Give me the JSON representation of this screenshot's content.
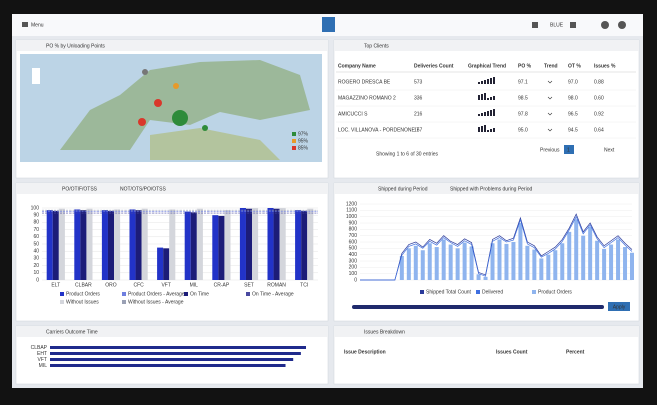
{
  "header": {
    "menu": "Menu",
    "user": "BLUE"
  },
  "map_panel": {
    "title": "PO % by Unloading Points",
    "legend": [
      "97%",
      "95%",
      "85%"
    ]
  },
  "clients": {
    "title": "Top Clients",
    "columns": [
      "Company Name",
      "Deliveries Count",
      "Graphical Trend",
      "PO %",
      "Trend",
      "OT %",
      "Issues %"
    ],
    "rows": [
      {
        "name": "ROGERO DRESCA BE",
        "count": "573",
        "po": "97.1",
        "ot": "97.0",
        "issues": "0.88"
      },
      {
        "name": "MAGAZZINO ROMANO 2",
        "count": "336",
        "po": "98.5",
        "ot": "98.0",
        "issues": "0.60"
      },
      {
        "name": "AMICUCCI S",
        "count": "216",
        "po": "97.8",
        "ot": "96.5",
        "issues": "0.92"
      },
      {
        "name": "LOC. VILLANOVA - PORDENONE 7",
        "count": "157",
        "po": "95.0",
        "ot": "94.5",
        "issues": "0.64"
      }
    ],
    "footer": "Showing 1 to 6 of 30 entries",
    "prev": "Previous",
    "page": "1",
    "next": "Next"
  },
  "carriers_panel": {
    "title": "Carriers Outcome Time"
  },
  "issues_panel": {
    "title": "Issues Breakdown",
    "columns": [
      "Issue Description",
      "Issues Count",
      "Percent"
    ]
  },
  "chart_data": [
    {
      "type": "bar",
      "tabs": [
        "PO/OTIF/OTSS",
        "NOT/OTS/PO/OTSS"
      ],
      "categories": [
        "ELT",
        "CLBAR",
        "ORO",
        "CFC",
        "VFT",
        "MIL",
        "CR-AP",
        "SET",
        "ROMAN",
        "TCI"
      ],
      "series": [
        {
          "name": "Product Orders",
          "color": "#2233c8",
          "values": [
            97,
            98,
            97,
            98,
            45,
            95,
            90,
            100,
            100,
            97
          ]
        },
        {
          "name": "Product Orders - Average",
          "color": "#6f7fe0",
          "values": [
            95,
            95,
            95,
            95,
            95,
            95,
            95,
            95,
            95,
            95
          ]
        },
        {
          "name": "On Time",
          "color": "#1c1c78",
          "values": [
            96,
            97,
            96,
            97,
            44,
            94,
            89,
            99,
            99,
            96
          ]
        },
        {
          "name": "On Time - Average",
          "color": "#4a4aa0",
          "values": [
            93,
            93,
            93,
            93,
            93,
            93,
            93,
            93,
            93,
            93
          ]
        },
        {
          "name": "Without Issues",
          "color": "#d4d6dc",
          "values": [
            99,
            99,
            98,
            99,
            98,
            99,
            97,
            100,
            100,
            99
          ]
        },
        {
          "name": "Without Issues - Average",
          "color": "#9aa0b4",
          "values": [
            97,
            97,
            97,
            97,
            97,
            97,
            97,
            97,
            97,
            97
          ]
        }
      ],
      "ylim": [
        0,
        100
      ],
      "yticks": [
        0,
        10,
        20,
        30,
        40,
        50,
        60,
        70,
        80,
        90,
        100
      ],
      "grid": true
    },
    {
      "type": "area",
      "tabs": [
        "Shipped during Period",
        "Shipped with Problems during Period"
      ],
      "series": [
        {
          "name": "Shipped Total Count",
          "color": "#2a3a9a",
          "values": [
            0,
            0,
            0,
            0,
            0,
            0,
            420,
            560,
            600,
            520,
            640,
            580,
            700,
            610,
            560,
            650,
            590,
            120,
            80,
            640,
            700,
            620,
            660,
            980,
            600,
            540,
            380,
            450,
            520,
            640,
            820,
            1040,
            760,
            900,
            680,
            540,
            620,
            700,
            580,
            480
          ]
        },
        {
          "name": "Delivered",
          "color": "#3f6fe0",
          "values": [
            0,
            0,
            0,
            0,
            0,
            0,
            390,
            530,
            570,
            500,
            610,
            550,
            670,
            590,
            530,
            620,
            560,
            100,
            60,
            610,
            670,
            600,
            630,
            950,
            570,
            510,
            360,
            420,
            490,
            610,
            790,
            1000,
            730,
            870,
            650,
            510,
            590,
            670,
            550,
            450
          ]
        },
        {
          "name": "Product Orders",
          "color": "#8fb4ee",
          "values": [
            0,
            0,
            0,
            0,
            0,
            0,
            380,
            500,
            540,
            470,
            580,
            520,
            640,
            560,
            500,
            590,
            530,
            90,
            50,
            580,
            640,
            570,
            600,
            900,
            540,
            480,
            340,
            400,
            470,
            580,
            760,
            960,
            700,
            840,
            620,
            490,
            560,
            640,
            520,
            430
          ]
        }
      ],
      "ylim": [
        0,
        1200
      ],
      "yticks": [
        0,
        100,
        200,
        300,
        400,
        500,
        600,
        700,
        800,
        900,
        1000,
        1100,
        1200
      ],
      "button": "Apply"
    },
    {
      "type": "hbar",
      "categories": [
        "CLBAP",
        "EHT",
        "VFT",
        "MIL"
      ],
      "series": [
        {
          "name": "On Time",
          "color": "#1f2a8c",
          "values": [
            100,
            98,
            95,
            92
          ]
        }
      ],
      "xlim": [
        0,
        100
      ]
    }
  ]
}
